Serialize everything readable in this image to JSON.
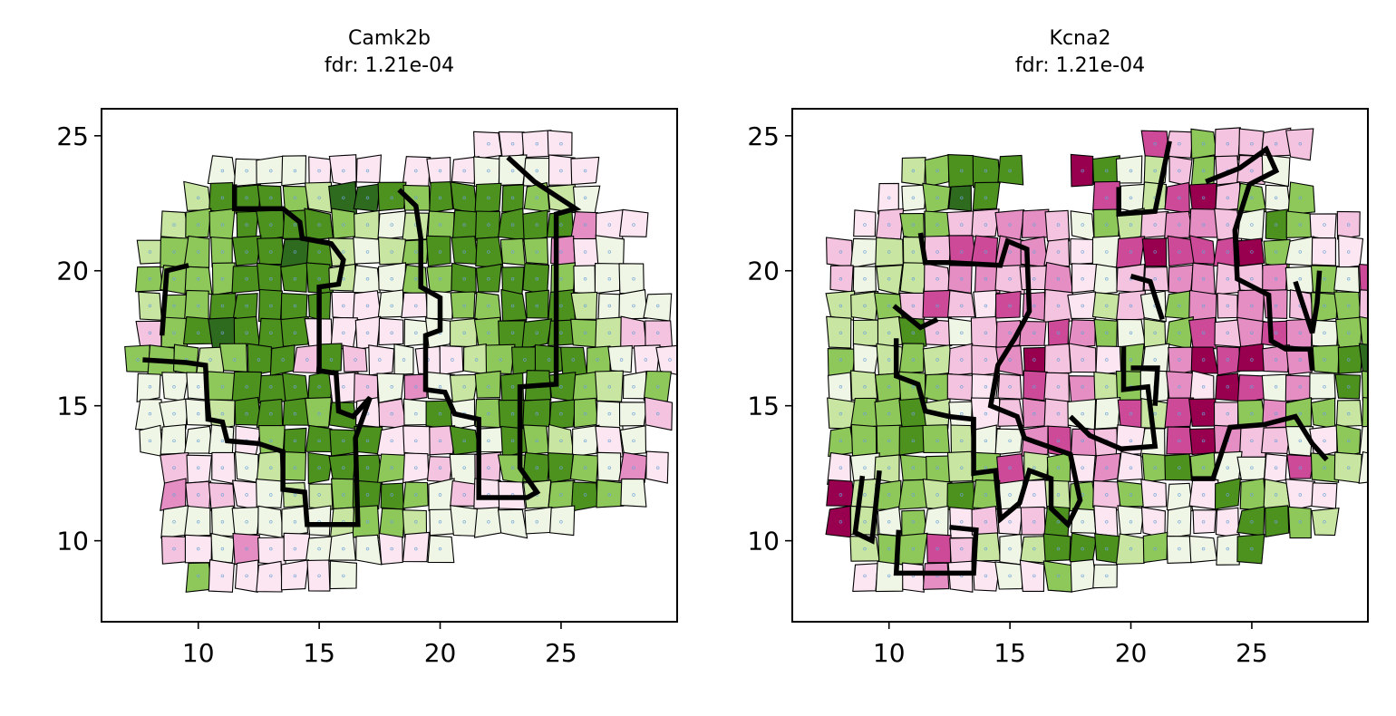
{
  "figure": {
    "panels": [
      {
        "gene": "Camk2b",
        "fdr_label": "fdr: 1.21e-04"
      },
      {
        "gene": "Kcna2",
        "fdr_label": "fdr: 1.21e-04"
      }
    ]
  },
  "chart_data": [
    {
      "type": "heatmap",
      "subtype": "voronoi spatial map",
      "title": "Camk2b\nfdr: 1.21e-04",
      "xlim": [
        6,
        29.8
      ],
      "ylim": [
        7,
        26
      ],
      "xticks": [
        10,
        15,
        20,
        25
      ],
      "yticks": [
        10,
        15,
        20,
        25
      ],
      "xlabel": "",
      "ylabel": "",
      "colormap": "PiYG",
      "cell_spacing_x": 1.0,
      "cell_spacing_y": 1.0,
      "rows": [
        {
          "y": 24.7,
          "x0": 22.0,
          "cells": "FFFF"
        },
        {
          "y": 23.7,
          "x0": 11.0,
          "cells": "EEEEFFF.FFFEEEFF"
        },
        {
          "y": 22.7,
          "x0": 10.0,
          "cells": "DBBBCDAABCBBBBCDE"
        },
        {
          "y": 21.7,
          "x0": 9.0,
          "cells": "DCCBBBBCDEDCBBBBBHFF"
        },
        {
          "y": 20.7,
          "x0": 8.0,
          "cells": "DCCCBBABDEDCBBBCCHFE"
        },
        {
          "y": 19.7,
          "x0": 8.0,
          "cells": "CCCCBBBBDEECCBBBBCEEE"
        },
        {
          "y": 18.7,
          "x0": 8.0,
          "cells": "DCCBBBBBFFEFECCBBBDEEE"
        },
        {
          "y": 17.7,
          "x0": 8.0,
          "cells": "GCBABBBFFFFEEDCBBBCDGG"
        },
        {
          "y": 16.7,
          "x0": 7.5,
          "cells": "CCCDCBBGBGFEFFDCBBBCEFF"
        },
        {
          "y": 15.7,
          "x0": 8.0,
          "cells": "EEECBBBBFGEHEDCBBBCDEC"
        },
        {
          "y": 14.7,
          "x0": 8.0,
          "cells": "EEEDBBBCBFGEBECBBBCEEG"
        },
        {
          "y": 13.7,
          "x0": 8.0,
          "cells": "EEEEFCBBBBFFGBEBCDEFE"
        },
        {
          "y": 12.7,
          "x0": 9.0,
          "cells": "GFFEDCBBBCFGEGCBBCEHF"
        },
        {
          "y": 11.7,
          "x0": 9.0,
          "cells": "HGGFEDDCBBCEGFFDCBCE"
        },
        {
          "y": 10.7,
          "x0": 9.0,
          "cells": "EEEEEEEDCCDEEEEEE"
        },
        {
          "y": 9.7,
          "x0": 9.0,
          "cells": "GFEHFFEEEFFE"
        },
        {
          "y": 8.7,
          "x0": 10.0,
          "cells": "CFFFFFE"
        }
      ],
      "thick_boundaries": [
        [
          [
            11.5,
            23.2
          ],
          [
            11.5,
            22.3
          ],
          [
            13.5,
            22.3
          ],
          [
            14.2,
            21.8
          ],
          [
            14.3,
            21.2
          ],
          [
            15.5,
            21.0
          ],
          [
            16.0,
            20.4
          ],
          [
            15.8,
            19.5
          ],
          [
            15.0,
            19.4
          ],
          [
            15.0,
            16.3
          ],
          [
            15.7,
            16.2
          ],
          [
            15.8,
            14.8
          ],
          [
            16.4,
            14.6
          ],
          [
            17.1,
            15.3
          ],
          [
            16.5,
            13.8
          ],
          [
            16.6,
            10.6
          ],
          [
            14.5,
            10.6
          ],
          [
            14.4,
            11.8
          ],
          [
            13.5,
            11.9
          ],
          [
            13.5,
            13.3
          ],
          [
            12.5,
            13.6
          ],
          [
            11.2,
            13.7
          ],
          [
            11.0,
            14.4
          ],
          [
            10.4,
            14.5
          ],
          [
            10.3,
            16.5
          ],
          [
            9.5,
            16.6
          ],
          [
            7.7,
            16.7
          ]
        ],
        [
          [
            8.5,
            17.6
          ],
          [
            8.7,
            20.0
          ],
          [
            9.6,
            20.2
          ]
        ],
        [
          [
            18.3,
            23.0
          ],
          [
            19.0,
            22.4
          ],
          [
            19.2,
            21.2
          ],
          [
            19.2,
            19.4
          ],
          [
            20.0,
            19.0
          ],
          [
            20.0,
            17.8
          ],
          [
            19.4,
            17.6
          ],
          [
            19.4,
            15.6
          ],
          [
            20.2,
            15.5
          ],
          [
            20.6,
            14.7
          ],
          [
            21.6,
            14.5
          ],
          [
            21.6,
            11.6
          ],
          [
            23.6,
            11.6
          ],
          [
            24.0,
            11.8
          ],
          [
            23.3,
            12.7
          ],
          [
            23.3,
            15.7
          ],
          [
            24.8,
            15.8
          ],
          [
            24.8,
            22.1
          ],
          [
            25.6,
            22.3
          ],
          [
            23.9,
            23.3
          ],
          [
            22.8,
            24.2
          ]
        ]
      ]
    },
    {
      "type": "heatmap",
      "subtype": "voronoi spatial map",
      "title": "Kcna2\nfdr: 1.21e-04",
      "xlim": [
        6,
        29.8
      ],
      "ylim": [
        7,
        26
      ],
      "xticks": [
        10,
        15,
        20,
        25
      ],
      "yticks": [
        10,
        15,
        20,
        25
      ],
      "xlabel": "",
      "ylabel": "",
      "colormap": "PiYG",
      "cell_spacing_x": 1.0,
      "cell_spacing_y": 1.0,
      "rows": [
        {
          "y": 24.7,
          "x0": 21.0,
          "cells": "IGCGGGG"
        },
        {
          "y": 23.7,
          "x0": 11.0,
          "cells": "DCBBB..JBEDGCGGE"
        },
        {
          "y": 22.7,
          "x0": 10.0,
          "cells": "FECAB....IEDIJGCEC"
        },
        {
          "y": 21.7,
          "x0": 9.0,
          "cells": "FGCCGGHHGECDGHHGEBCFG"
        },
        {
          "y": 20.7,
          "x0": 8.0,
          "cells": "GEDDGIIHHGFEIJIIIJCEFF"
        },
        {
          "y": 19.7,
          "x0": 8.0,
          "cells": "GEDDGHHGGHFEGGHHGGHECEIJ"
        },
        {
          "y": 18.7,
          "x0": 8.0,
          "cells": "DDCGIGFIHGFDGECHGHHGCCGI"
        },
        {
          "y": 17.7,
          "x0": 8.0,
          "cells": "DDDBGEGHHIHCEDCIGHIHECCDE"
        },
        {
          "y": 16.7,
          "x0": 8.0,
          "cells": "CEDCDGGHJGGFCEHJIJHHCBAEE"
        },
        {
          "y": 15.7,
          "x0": 8.0,
          "cells": "EDCCCGFGIGHDCEHFJIEHEBCDE"
        },
        {
          "y": 14.7,
          "x0": 8.0,
          "cells": "DCCBDEFGHGEEIDIJGCHCCDCE"
        },
        {
          "y": 13.7,
          "x0": 8.0,
          "cells": "CCCBCDEEHIHGFEIJHGGEFCE"
        },
        {
          "y": 12.7,
          "x0": 8.0,
          "cells": "FEDCCDCIDCFHFCBCEEFICDE"
        },
        {
          "y": 11.7,
          "x0": 8.0,
          "cells": "JDCCDBCEFDCGCFEFBCDFF"
        },
        {
          "y": 10.7,
          "x0": 8.0,
          "cells": "JDECEFGFGBEFEFEFFBBCD"
        },
        {
          "y": 9.7,
          "x0": 9.0,
          "cells": "DCCIGDEDBBBDCEEEB"
        },
        {
          "y": 8.7,
          "x0": 9.0,
          "cells": "FEFHFFEFCEE"
        }
      ],
      "thick_boundaries": [
        [
          [
            11.3,
            21.4
          ],
          [
            11.5,
            20.3
          ],
          [
            12.5,
            20.3
          ],
          [
            14.6,
            20.2
          ],
          [
            14.9,
            21.1
          ],
          [
            15.7,
            20.8
          ],
          [
            15.8,
            18.5
          ],
          [
            15.2,
            17.5
          ],
          [
            14.5,
            16.5
          ],
          [
            14.2,
            15.0
          ],
          [
            15.3,
            14.6
          ],
          [
            15.6,
            13.8
          ],
          [
            17.5,
            13.2
          ],
          [
            17.9,
            11.5
          ],
          [
            17.4,
            10.6
          ],
          [
            16.7,
            11.2
          ],
          [
            16.7,
            12.3
          ],
          [
            15.8,
            12.6
          ],
          [
            15.4,
            11.4
          ],
          [
            14.6,
            10.8
          ],
          [
            14.4,
            12.6
          ],
          [
            13.5,
            12.5
          ],
          [
            13.5,
            14.5
          ],
          [
            12.5,
            14.6
          ],
          [
            11.5,
            14.8
          ],
          [
            11.2,
            15.8
          ],
          [
            10.3,
            16.1
          ],
          [
            10.3,
            17.5
          ]
        ],
        [
          [
            10.2,
            18.7
          ],
          [
            11.3,
            17.9
          ],
          [
            12.0,
            18.2
          ]
        ],
        [
          [
            8.9,
            12.4
          ],
          [
            8.6,
            10.3
          ],
          [
            9.3,
            10.0
          ],
          [
            9.6,
            12.6
          ]
        ],
        [
          [
            10.4,
            10.4
          ],
          [
            10.3,
            8.8
          ],
          [
            13.5,
            8.8
          ],
          [
            13.6,
            10.4
          ],
          [
            12.5,
            10.5
          ]
        ],
        [
          [
            19.5,
            23.1
          ],
          [
            19.5,
            22.1
          ],
          [
            21.0,
            22.2
          ],
          [
            21.6,
            24.8
          ]
        ],
        [
          [
            23.1,
            23.3
          ],
          [
            24.5,
            23.8
          ],
          [
            25.6,
            24.5
          ],
          [
            26.0,
            23.7
          ],
          [
            24.9,
            23.2
          ],
          [
            24.3,
            21.5
          ],
          [
            24.4,
            19.7
          ],
          [
            25.7,
            19.1
          ],
          [
            25.8,
            17.4
          ],
          [
            26.4,
            17.1
          ],
          [
            27.4,
            17.1
          ],
          [
            27.5,
            16.3
          ]
        ],
        [
          [
            19.7,
            17.2
          ],
          [
            19.7,
            15.6
          ],
          [
            20.7,
            15.7
          ],
          [
            21.0,
            13.5
          ],
          [
            19.6,
            13.4
          ],
          [
            18.3,
            13.9
          ],
          [
            17.5,
            14.6
          ]
        ],
        [
          [
            20.0,
            19.8
          ],
          [
            20.8,
            19.6
          ],
          [
            21.3,
            18.2
          ]
        ],
        [
          [
            20.0,
            16.4
          ],
          [
            21.1,
            16.4
          ],
          [
            21.0,
            15.0
          ]
        ],
        [
          [
            22.5,
            12.3
          ],
          [
            23.4,
            12.3
          ],
          [
            24.1,
            14.2
          ],
          [
            25.5,
            14.3
          ],
          [
            26.8,
            14.6
          ],
          [
            27.5,
            13.6
          ],
          [
            28.1,
            13.0
          ]
        ],
        [
          [
            26.8,
            19.6
          ],
          [
            27.5,
            17.7
          ],
          [
            27.7,
            18.8
          ],
          [
            27.8,
            20.0
          ]
        ]
      ]
    }
  ]
}
